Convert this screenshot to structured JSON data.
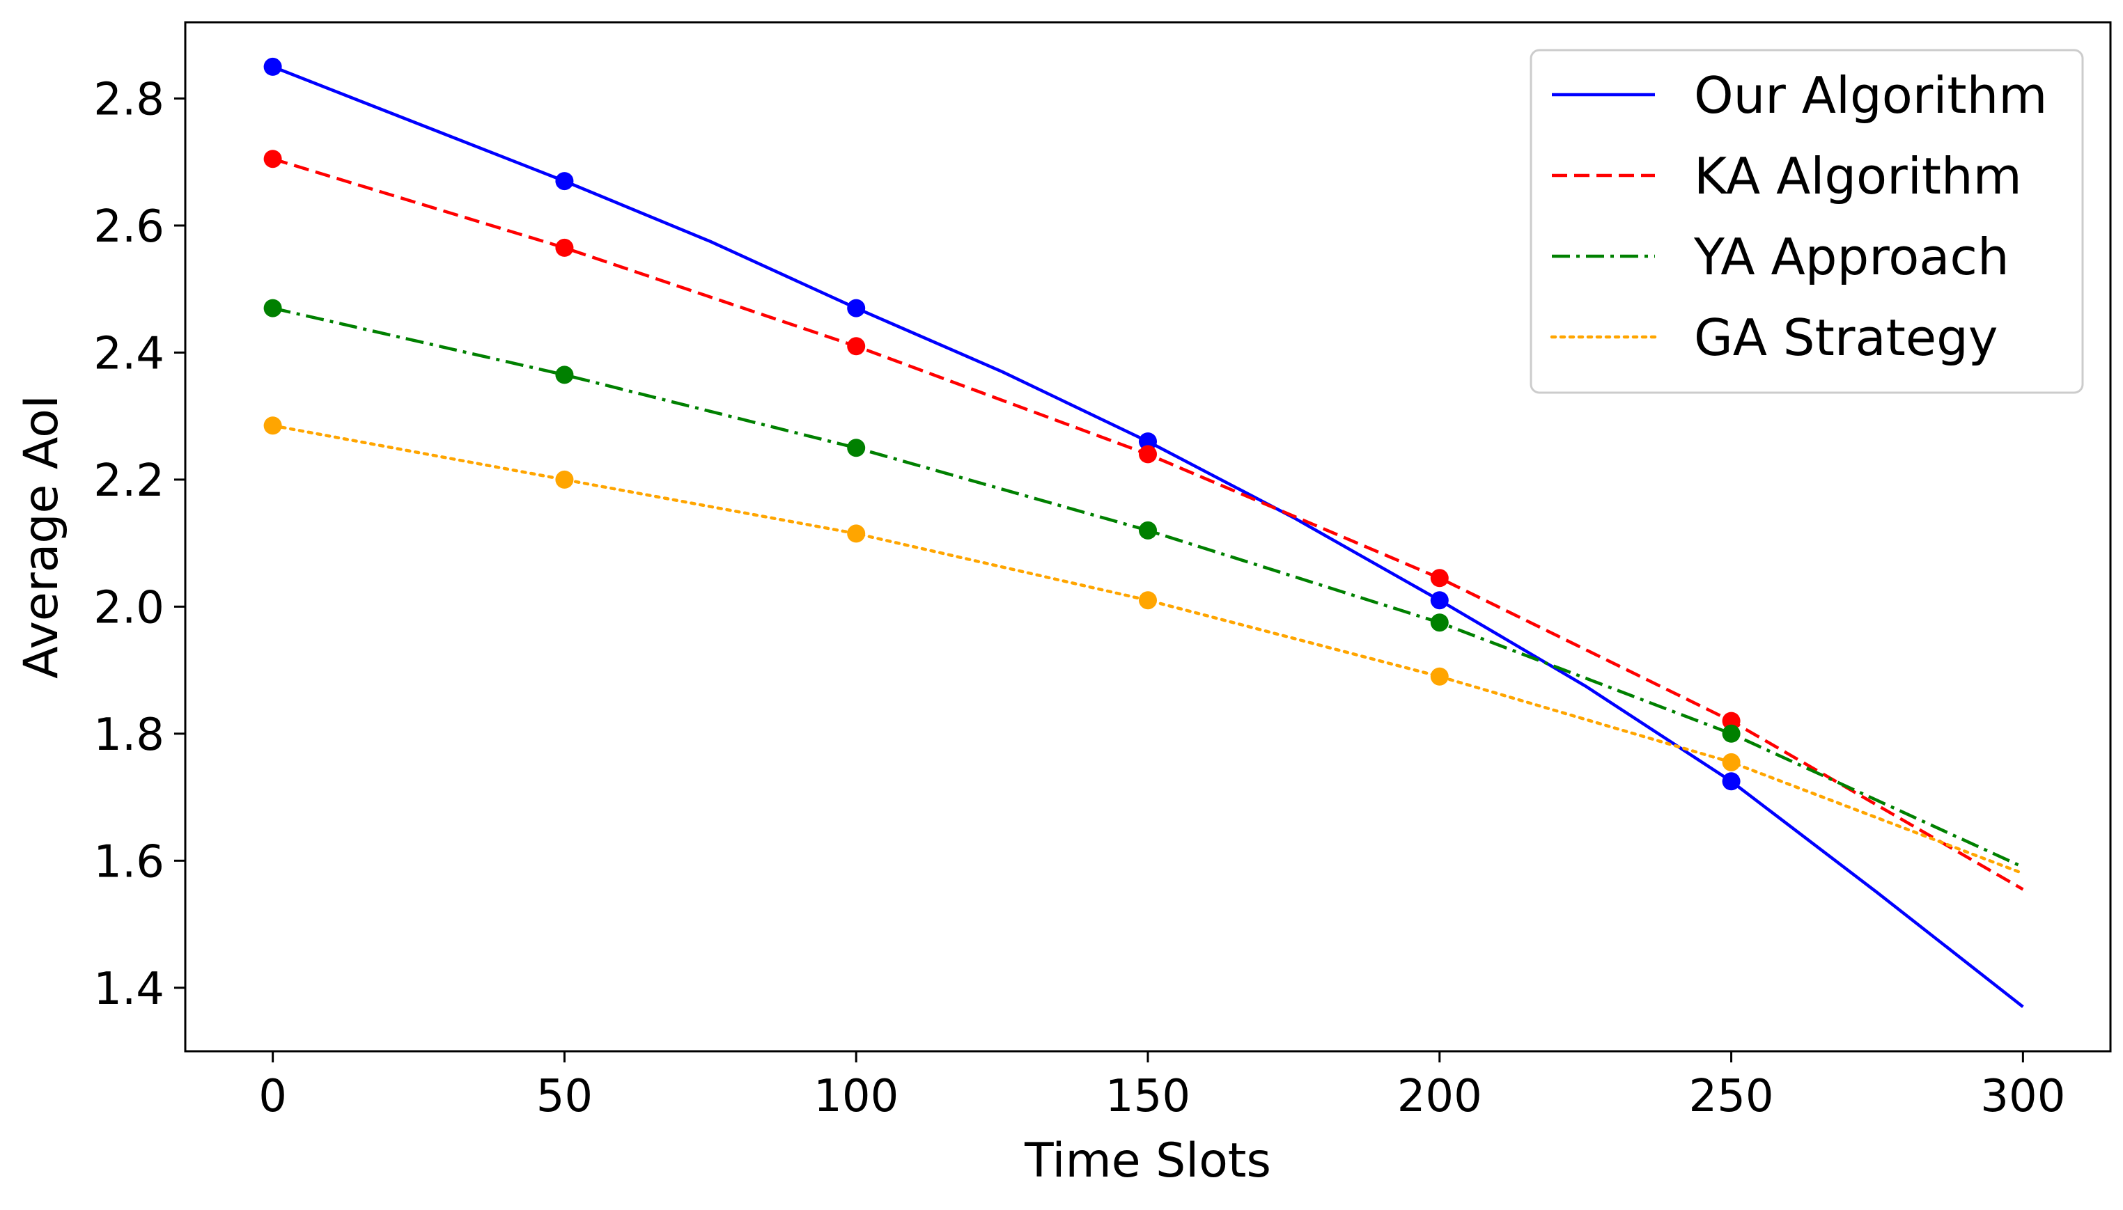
{
  "chart_data": {
    "type": "line",
    "title": "",
    "xlabel": "Time Slots",
    "ylabel": "Average AoI",
    "xlim": [
      -15,
      315
    ],
    "ylim": [
      1.3,
      2.92
    ],
    "xticks": [
      0,
      50,
      100,
      150,
      200,
      250,
      300
    ],
    "yticks": [
      1.4,
      1.6,
      1.8,
      2.0,
      2.2,
      2.4,
      2.6,
      2.8
    ],
    "xtick_labels": [
      "0",
      "50",
      "100",
      "150",
      "200",
      "250",
      "300"
    ],
    "ytick_labels": [
      "1.4",
      "1.6",
      "1.8",
      "2.0",
      "2.2",
      "2.4",
      "2.6",
      "2.8"
    ],
    "grid": false,
    "legend_position": "top-right",
    "marker_x": [
      0,
      50,
      100,
      150,
      200,
      250
    ],
    "series": [
      {
        "name": "Our Algorithm",
        "color": "#0000ff",
        "line_style": "solid",
        "x": [
          0,
          25,
          50,
          75,
          100,
          125,
          150,
          175,
          200,
          225,
          250,
          275,
          300
        ],
        "values": [
          2.85,
          2.76,
          2.67,
          2.575,
          2.47,
          2.37,
          2.26,
          2.14,
          2.01,
          1.875,
          1.725,
          1.55,
          1.37
        ],
        "markers": [
          2.85,
          2.67,
          2.47,
          2.26,
          2.01,
          1.725
        ]
      },
      {
        "name": "KA Algorithm",
        "color": "#ff0000",
        "line_style": "dashed",
        "x": [
          0,
          50,
          100,
          150,
          200,
          250,
          300
        ],
        "values": [
          2.705,
          2.565,
          2.41,
          2.24,
          2.045,
          1.82,
          1.555
        ],
        "markers": [
          2.705,
          2.565,
          2.41,
          2.24,
          2.045,
          1.82
        ]
      },
      {
        "name": "YA Approach",
        "color": "#008000",
        "line_style": "dashdot",
        "x": [
          0,
          50,
          100,
          150,
          200,
          250,
          300
        ],
        "values": [
          2.47,
          2.365,
          2.25,
          2.12,
          1.975,
          1.8,
          1.59
        ],
        "markers": [
          2.47,
          2.365,
          2.25,
          2.12,
          1.975,
          1.8
        ]
      },
      {
        "name": "GA Strategy",
        "color": "#ffa500",
        "line_style": "dotted",
        "x": [
          0,
          50,
          100,
          150,
          200,
          250,
          300
        ],
        "values": [
          2.285,
          2.2,
          2.115,
          2.01,
          1.89,
          1.755,
          1.58
        ],
        "markers": [
          2.285,
          2.2,
          2.115,
          2.01,
          1.89,
          1.755
        ]
      }
    ]
  }
}
